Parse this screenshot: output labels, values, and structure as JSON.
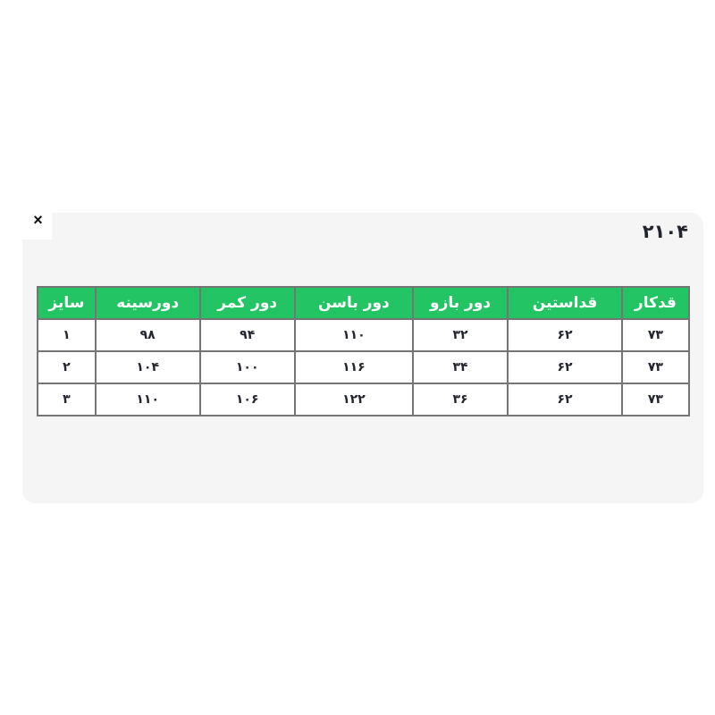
{
  "page": {
    "product_code": "۲۱۰۴",
    "close_glyph": "×"
  },
  "table": {
    "columns": [
      "سایز",
      "دورسینه",
      "دور کمر",
      "دور باسن",
      "دور بازو",
      "قداستین",
      "قدکار"
    ],
    "rows": [
      [
        "۱",
        "۹۸",
        "۹۴",
        "۱۱۰",
        "۳۲",
        "۶۲",
        "۷۳"
      ],
      [
        "۲",
        "۱۰۴",
        "۱۰۰",
        "۱۱۶",
        "۳۴",
        "۶۲",
        "۷۳"
      ],
      [
        "۳",
        "۱۱۰",
        "۱۰۶",
        "۱۲۲",
        "۳۶",
        "۶۲",
        "۷۳"
      ]
    ]
  },
  "colors": {
    "header_bg": "#22c463",
    "header_text": "#ffffff",
    "border": "#757575",
    "panel_bg": "#f5f5f6",
    "text": "#23252e"
  }
}
